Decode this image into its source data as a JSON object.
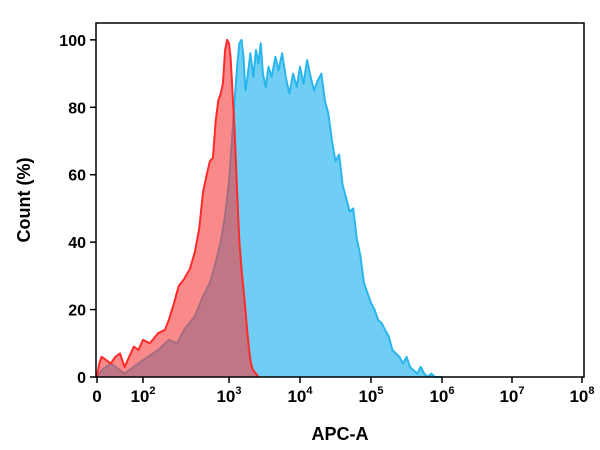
{
  "chart_data": {
    "type": "area",
    "title": "",
    "xlabel": "APC-A",
    "ylabel": "Count (%)",
    "x_scale": "biexponential",
    "xlim": [
      0,
      100000000
    ],
    "ylim": [
      0,
      105
    ],
    "x_ticks": [
      {
        "value": 0,
        "base": "0",
        "exp": ""
      },
      {
        "value": 100,
        "base": "10",
        "exp": "2"
      },
      {
        "value": 1000,
        "base": "10",
        "exp": "3"
      },
      {
        "value": 10000,
        "base": "10",
        "exp": "4"
      },
      {
        "value": 100000,
        "base": "10",
        "exp": "5"
      },
      {
        "value": 1000000,
        "base": "10",
        "exp": "6"
      },
      {
        "value": 10000000,
        "base": "10",
        "exp": "7"
      },
      {
        "value": 100000000,
        "base": "10",
        "exp": "8"
      }
    ],
    "y_ticks": [
      0,
      20,
      40,
      60,
      80,
      100
    ],
    "grid": false,
    "legend": "none",
    "series": [
      {
        "color": "#29b6ec",
        "fill": "rgba(64,190,240,0.75)",
        "x": [
          0,
          10,
          30,
          60,
          100,
          150,
          200,
          250,
          300,
          400,
          500,
          600,
          700,
          800,
          900,
          1000,
          1100,
          1200,
          1300,
          1400,
          1500,
          1600,
          1700,
          1800,
          2000,
          2200,
          2400,
          2600,
          2800,
          3000,
          3300,
          3600,
          4000,
          4500,
          5000,
          5600,
          6300,
          7100,
          8000,
          9000,
          10000,
          11200,
          12600,
          14100,
          15800,
          17800,
          20000,
          22400,
          25100,
          28200,
          31600,
          35500,
          39800,
          44700,
          50100,
          56200,
          63100,
          70800,
          79400,
          89100,
          100000,
          112000,
          126000,
          141000,
          158000,
          178000,
          200000,
          224000,
          251000,
          282000,
          316000,
          355000,
          398000,
          447000,
          501000,
          562000,
          631000,
          708000,
          794000,
          891000,
          1000000
        ],
        "values": [
          0,
          2,
          4,
          1,
          5,
          8,
          11,
          10,
          14,
          18,
          24,
          28,
          34,
          40,
          48,
          58,
          70,
          82,
          92,
          99,
          100,
          95,
          85,
          88,
          96,
          89,
          97,
          93,
          99,
          90,
          86,
          92,
          89,
          95,
          91,
          96,
          89,
          84,
          90,
          86,
          92,
          87,
          94,
          89,
          85,
          88,
          90,
          82,
          78,
          70,
          64,
          66,
          57,
          53,
          49,
          50,
          41,
          36,
          28,
          25,
          22,
          20,
          17,
          16,
          14,
          12,
          8,
          7,
          6,
          4,
          6,
          3,
          2,
          1,
          3,
          1,
          0,
          1,
          0,
          0,
          0
        ]
      },
      {
        "color": "#ff2a2a",
        "fill": "rgba(247,60,60,0.6)",
        "x": [
          0,
          5,
          10,
          20,
          30,
          40,
          50,
          60,
          70,
          80,
          90,
          100,
          120,
          150,
          180,
          200,
          230,
          260,
          300,
          350,
          400,
          450,
          500,
          550,
          600,
          650,
          700,
          750,
          800,
          850,
          900,
          950,
          1000,
          1050,
          1100,
          1150,
          1200,
          1300,
          1400,
          1500,
          1600,
          1700,
          1800,
          1900,
          2000,
          2100,
          2200,
          2400,
          2600
        ],
        "values": [
          0,
          4,
          6,
          5,
          4,
          6,
          7,
          3,
          6,
          9,
          8,
          11,
          10,
          13,
          14,
          17,
          22,
          27,
          29,
          32,
          37,
          44,
          55,
          60,
          64,
          65,
          76,
          82,
          84,
          87,
          97,
          100,
          99,
          95,
          88,
          80,
          73,
          55,
          40,
          32,
          26,
          20,
          14,
          9,
          5,
          3,
          2,
          1,
          0
        ]
      }
    ]
  }
}
